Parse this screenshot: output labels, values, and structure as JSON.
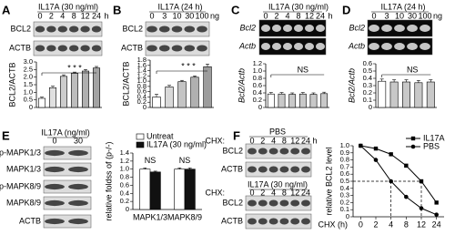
{
  "panels": [
    {
      "letter": "A",
      "title": "IL17A (30 ng/ml)",
      "lanes": [
        "0",
        "2",
        "4",
        "8",
        "12",
        "24"
      ],
      "unit": "h",
      "rows": [
        "BCL2",
        "ACTB"
      ],
      "style": "blot",
      "italic": false
    },
    {
      "letter": "B",
      "title": "IL17A (24 h)",
      "lanes": [
        "0",
        "3",
        "10",
        "30",
        "100"
      ],
      "unit": "ng",
      "rows": [
        "BCL2",
        "ACTB"
      ],
      "style": "blot",
      "italic": false
    },
    {
      "letter": "C",
      "title": "IL17A (30 ng/ml)",
      "lanes": [
        "0",
        "2",
        "4",
        "8",
        "12",
        "24"
      ],
      "unit": "h",
      "rows": [
        "Bcl2",
        "Actb"
      ],
      "style": "gel",
      "italic": true
    },
    {
      "letter": "D",
      "title": "IL17A (24 h)",
      "lanes": [
        "0",
        "3",
        "10",
        "30",
        "100"
      ],
      "unit": "ng",
      "rows": [
        "Bcl2",
        "Actb"
      ],
      "style": "gel",
      "italic": true
    },
    {
      "letter": "E",
      "title": "IL17A (ng/ml)",
      "lanes": [
        "0",
        "30"
      ],
      "rows": [
        "p-MAPK1/3",
        "MAPK1/3",
        "p-MAPK8/9",
        "MAPK8/9",
        "ACTB"
      ],
      "style": "blot",
      "italic": false
    },
    {
      "letter": "F",
      "title": "PBS",
      "prefix": "CHX:",
      "lanes": [
        "0",
        "2",
        "4",
        "8",
        "12",
        "24"
      ],
      "unit": "h",
      "rows": [
        "BCL2",
        "ACTB"
      ],
      "style": "blot",
      "italic": false
    },
    {
      "title": "IL17A (30 ng/ml)",
      "prefix": "CHX:",
      "lanes": [
        "0",
        "2",
        "4",
        "8",
        "12",
        "24"
      ],
      "rows": [
        "BCL2",
        "ACTB"
      ],
      "style": "blot",
      "italic": false
    }
  ],
  "chart_data": [
    {
      "type": "bar",
      "ylabel": "BCL2/ACTB",
      "italic": false,
      "categories": [
        null,
        null,
        null,
        null,
        null,
        null
      ],
      "values": [
        0.6,
        1.3,
        2.05,
        2.25,
        2.4,
        2.6
      ],
      "errors": [
        0.08,
        0.1,
        0.1,
        0.08,
        0.1,
        0.1
      ],
      "colors": [
        "#ffffff",
        "#e0e0e0",
        "#cccccc",
        "#bdbdbd",
        "#b0b0b0",
        "#a3a3a3"
      ],
      "ylim": [
        0,
        3
      ],
      "yticks": [
        0,
        0.5,
        {
          "value": 1,
          "label": "1.0"
        },
        1.5,
        {
          "value": 2,
          "label": "2.0"
        },
        2.5,
        {
          "value": 3,
          "label": "3.0"
        }
      ],
      "annotation": "* * *"
    },
    {
      "type": "bar",
      "ylabel": "BCL2/ACTB",
      "italic": false,
      "categories": [
        null,
        null,
        null,
        null,
        null
      ],
      "values": [
        0.4,
        0.78,
        0.98,
        1.15,
        1.55
      ],
      "errors": [
        0.1,
        0.06,
        0.05,
        0.05,
        0.1
      ],
      "colors": [
        "#ffffff",
        "#d9d9d9",
        "#c4c4c4",
        "#b0b0b0",
        "#9c9c9c"
      ],
      "ylim": [
        0,
        1.8
      ],
      "yticks": [
        0,
        0.2,
        0.4,
        0.6,
        0.8,
        {
          "value": 1,
          "label": "1.0"
        },
        1.2,
        1.4,
        1.6,
        1.8
      ],
      "annotation": "* * *"
    },
    {
      "type": "bar",
      "ylabel": "Bcl2/Actb",
      "italic": true,
      "categories": [
        null,
        null,
        null,
        null,
        null,
        null
      ],
      "values": [
        0.37,
        0.37,
        0.36,
        0.37,
        0.36,
        0.38
      ],
      "errors": [
        0.04,
        0.04,
        0.04,
        0.04,
        0.04,
        0.04
      ],
      "colors": [
        "#ffffff",
        "#c8c8c8",
        "#c8c8c8",
        "#c8c8c8",
        "#c8c8c8",
        "#c8c8c8"
      ],
      "ylim": [
        0,
        1.2
      ],
      "yticks": [
        0,
        0.2,
        0.4,
        0.6,
        0.8,
        {
          "value": 1,
          "label": "1.0"
        },
        1.2
      ],
      "annotation": "NS"
    },
    {
      "type": "bar",
      "ylabel": "Bcl2/Actb",
      "italic": true,
      "categories": [
        null,
        null,
        null,
        null,
        null
      ],
      "values": [
        0.36,
        0.35,
        0.35,
        0.34,
        0.35
      ],
      "errors": [
        0.03,
        0.03,
        0.03,
        0.03,
        0.03
      ],
      "colors": [
        "#ffffff",
        "#c8c8c8",
        "#c8c8c8",
        "#c8c8c8",
        "#c8c8c8"
      ],
      "ylim": [
        0,
        0.6
      ],
      "yticks": [
        0,
        0.1,
        0.2,
        0.3,
        0.4,
        0.5,
        0.6
      ],
      "annotation": "NS"
    },
    {
      "type": "bar",
      "ylabel": "relative foldss of (p-/-)",
      "italic": false,
      "categories": [
        "MAPK1/3",
        "MAPK8/9"
      ],
      "series": [
        {
          "name": "Untreat",
          "color": "#ffffff",
          "values": [
            1.0,
            1.0
          ],
          "errors": [
            0.03,
            0.03
          ]
        },
        {
          "name": "IL17A (30 ng/ml)",
          "color": "#111111",
          "values": [
            0.93,
            1.0
          ],
          "errors": [
            0.02,
            0.03
          ]
        }
      ],
      "ylim": [
        0,
        1.4
      ],
      "yticks": [
        0,
        0.2,
        0.4,
        0.6,
        0.8,
        {
          "value": 1,
          "label": "1.0"
        },
        1.2,
        1.4
      ],
      "annotations": [
        "NS",
        "NS"
      ]
    },
    {
      "type": "line",
      "ylabel": "relative BCL2 level",
      "xlabel": "CHX (h)",
      "italic": false,
      "categories": [
        "0",
        "2",
        "4",
        "8",
        "12",
        "24"
      ],
      "series": [
        {
          "name": "IL17A",
          "color": "#000000",
          "marker": "square",
          "values": [
            1.0,
            0.96,
            0.88,
            0.72,
            0.5,
            0.2
          ]
        },
        {
          "name": "PBS",
          "color": "#000000",
          "marker": "circle",
          "values": [
            1.0,
            0.8,
            0.5,
            0.28,
            0.12,
            0.03
          ]
        }
      ],
      "ylim": [
        0,
        1
      ],
      "yticks": [
        0,
        0.1,
        0.2,
        0.3,
        0.4,
        0.5,
        0.6,
        0.7,
        0.8,
        0.9,
        {
          "value": 1,
          "label": "1.0"
        }
      ]
    }
  ]
}
